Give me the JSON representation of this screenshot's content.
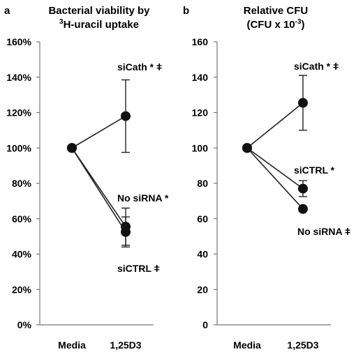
{
  "chart_data": [
    {
      "panel": "a",
      "type": "line",
      "title_line1": "Bacterial viability by",
      "title_line2_sup": "3",
      "title_line2_rest": "H-uracil uptake",
      "categories": [
        "Media",
        "1,25D3"
      ],
      "ylim": [
        0,
        160
      ],
      "yticks": [
        "0%",
        "20%",
        "40%",
        "60%",
        "80%",
        "100%",
        "120%",
        "140%",
        "160%"
      ],
      "series": [
        {
          "name": "siCath * ǂ",
          "values": [
            100,
            118
          ],
          "err": [
            0,
            20.5
          ]
        },
        {
          "name": "No siRNA *",
          "values": [
            100,
            55.5
          ],
          "err": [
            0,
            10.5
          ]
        },
        {
          "name": "siCTRL ǂ",
          "values": [
            100,
            52.5
          ],
          "err": [
            0,
            8.5
          ]
        }
      ]
    },
    {
      "panel": "b",
      "type": "line",
      "title_line1": "Relative CFU",
      "title_line2_sup": "-3",
      "title_line2_rest": "(CFU x 10",
      "title_line2_end": ")",
      "categories": [
        "Media",
        "1,25D3"
      ],
      "ylim": [
        0,
        160
      ],
      "yticks": [
        "0",
        "20",
        "40",
        "60",
        "80",
        "100",
        "120",
        "140",
        "160"
      ],
      "series": [
        {
          "name": "siCath * ǂ",
          "values": [
            100,
            125.5
          ],
          "err": [
            0,
            15.5
          ]
        },
        {
          "name": "siCTRL *",
          "values": [
            100,
            77
          ],
          "err": [
            0,
            4.5
          ]
        },
        {
          "name": "No siRNA ǂ",
          "values": [
            100,
            65.5
          ],
          "err": [
            0,
            0
          ]
        }
      ]
    }
  ]
}
